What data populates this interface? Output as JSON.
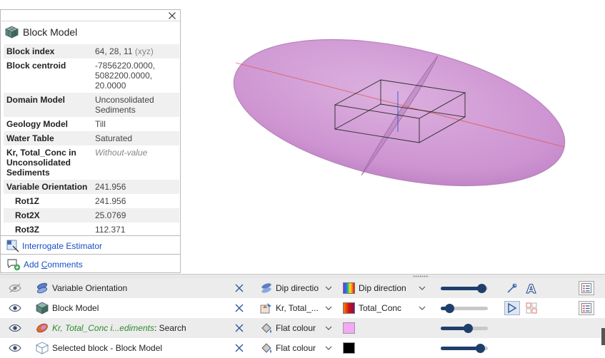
{
  "info_panel": {
    "title": "Block Model",
    "close_icon": "close-icon",
    "properties": [
      {
        "key": "Block index",
        "value": "64, 28, 11",
        "hint": "(xyz)",
        "sub": false,
        "shade": true
      },
      {
        "key": "Block centroid",
        "value": "-7856220.0000,\n5082200.0000,\n20.0000",
        "hint": "",
        "sub": false,
        "shade": false
      },
      {
        "key": "Domain Model",
        "value": "Unconsolidated\nSediments",
        "hint": "",
        "sub": false,
        "shade": true
      },
      {
        "key": "Geology Model",
        "value": "Till",
        "hint": "",
        "sub": false,
        "shade": false
      },
      {
        "key": "Water Table",
        "value": "Saturated",
        "hint": "",
        "sub": false,
        "shade": true
      },
      {
        "key": "Kr, Total_Conc in\nUnconsolidated\nSediments",
        "value": "Without-value",
        "hint": "",
        "sub": false,
        "shade": false,
        "italic": true
      },
      {
        "key": "Variable Orientation",
        "value": "241.956",
        "hint": "",
        "sub": false,
        "shade": true
      },
      {
        "key": "Rot1Z",
        "value": "241.956",
        "hint": "",
        "sub": true,
        "shade": false
      },
      {
        "key": "Rot2X",
        "value": "25.0769",
        "hint": "",
        "sub": true,
        "shade": true
      },
      {
        "key": "Rot3Z",
        "value": "112.371",
        "hint": "",
        "sub": true,
        "shade": false
      }
    ],
    "actions": {
      "interrogate": "Interrogate Estimator",
      "comments_prefix": "Add ",
      "comments_underlined": "C",
      "comments_suffix": "omments"
    }
  },
  "scene_rows": [
    {
      "name": "Variable Orientation",
      "name_highlight": "",
      "visible": false,
      "colour_mode": "Dip directio",
      "swatch_label": "Dip direction",
      "swatch_type": "rainbow",
      "opacity": 0.97,
      "has_dd2": true
    },
    {
      "name": "Block Model",
      "name_highlight": "",
      "visible": true,
      "colour_mode": "Kr, Total_...",
      "swatch_label": "Total_Conc",
      "swatch_type": "rainbow",
      "opacity": 0.12,
      "has_dd2": true
    },
    {
      "name": ": Search",
      "name_highlight": "Kr, Total_Conc i...ediments",
      "visible": true,
      "colour_mode": "Flat colour",
      "swatch_label": "",
      "swatch_type": "#f5a8f5",
      "opacity": 0.6,
      "has_dd2": false
    },
    {
      "name": "Selected block - Block Model",
      "name_highlight": "",
      "visible": true,
      "colour_mode": "Flat colour",
      "swatch_label": "",
      "swatch_type": "#000000",
      "opacity": 0.92,
      "has_dd2": false
    }
  ],
  "colors": {
    "ellipsoid_fill": "#cf96d3",
    "ellipsoid_edge": "#b57bba",
    "slider": "#1f3f6b",
    "link": "#1a4fc4"
  }
}
